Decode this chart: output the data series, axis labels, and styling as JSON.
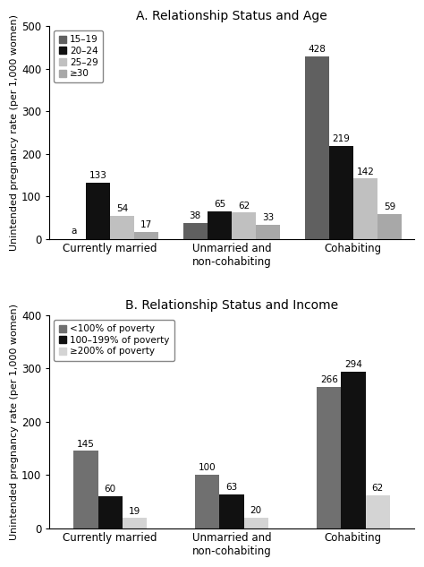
{
  "chart_a": {
    "title": "A. Relationship Status and Age",
    "categories": [
      "Currently married",
      "Unmarried and\nnon-cohabiting",
      "Cohabiting"
    ],
    "series": [
      {
        "label": "15–19",
        "color": "#606060",
        "values": [
          null,
          38,
          428
        ]
      },
      {
        "label": "20–24",
        "color": "#111111",
        "values": [
          133,
          65,
          219
        ]
      },
      {
        "label": "25–29",
        "color": "#c0c0c0",
        "values": [
          54,
          62,
          142
        ]
      },
      {
        "label": "≥30",
        "color": "#a8a8a8",
        "values": [
          17,
          33,
          59
        ]
      }
    ],
    "ylabel": "Unintended pregnancy rate (per 1,000 women)",
    "ylim": [
      0,
      500
    ],
    "yticks": [
      0,
      100,
      200,
      300,
      400,
      500
    ],
    "special_label": "a"
  },
  "chart_b": {
    "title": "B. Relationship Status and Income",
    "categories": [
      "Currently married",
      "Unmarried and\nnon-cohabiting",
      "Cohabiting"
    ],
    "series": [
      {
        "label": "<100% of poverty",
        "color": "#707070",
        "values": [
          145,
          100,
          266
        ]
      },
      {
        "label": "100–199% of poverty",
        "color": "#111111",
        "values": [
          60,
          63,
          294
        ]
      },
      {
        "label": "≥200% of poverty",
        "color": "#d4d4d4",
        "values": [
          19,
          20,
          62
        ]
      }
    ],
    "ylabel": "Unintended pregnancy rate (per 1,000 women)",
    "ylim": [
      0,
      400
    ],
    "yticks": [
      0,
      100,
      200,
      300,
      400
    ]
  },
  "bar_width": 0.2,
  "label_fontsize": 7.5,
  "tick_fontsize": 8.5,
  "title_fontsize": 10,
  "legend_fontsize": 7.5,
  "ylabel_fontsize": 8
}
